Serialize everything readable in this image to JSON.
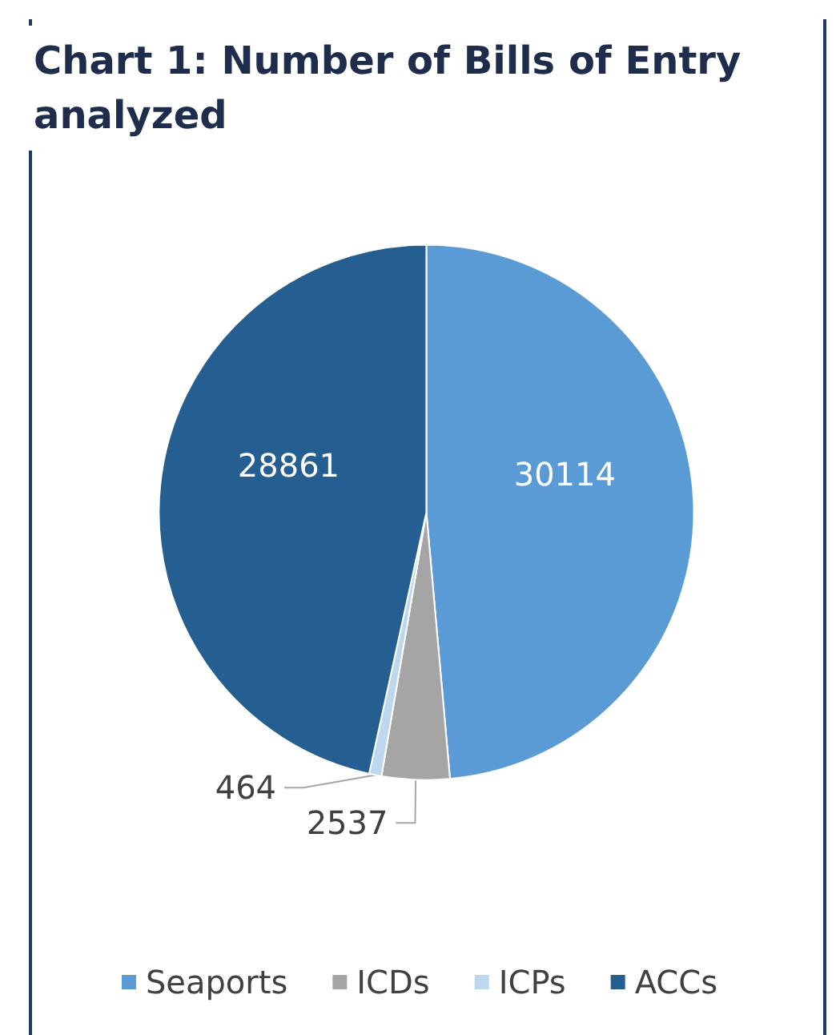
{
  "chart_data": {
    "type": "pie",
    "title": "Chart 1: Number of Bills of Entry analyzed",
    "categories": [
      "Seaports",
      "ICDs",
      "ICPs",
      "ACCs"
    ],
    "values": [
      30114,
      2537,
      464,
      28861
    ],
    "colors": [
      "#5b9bd5",
      "#a5a5a5",
      "#bdd7ee",
      "#255e91"
    ],
    "data_labels": true,
    "legend": "bottom"
  }
}
